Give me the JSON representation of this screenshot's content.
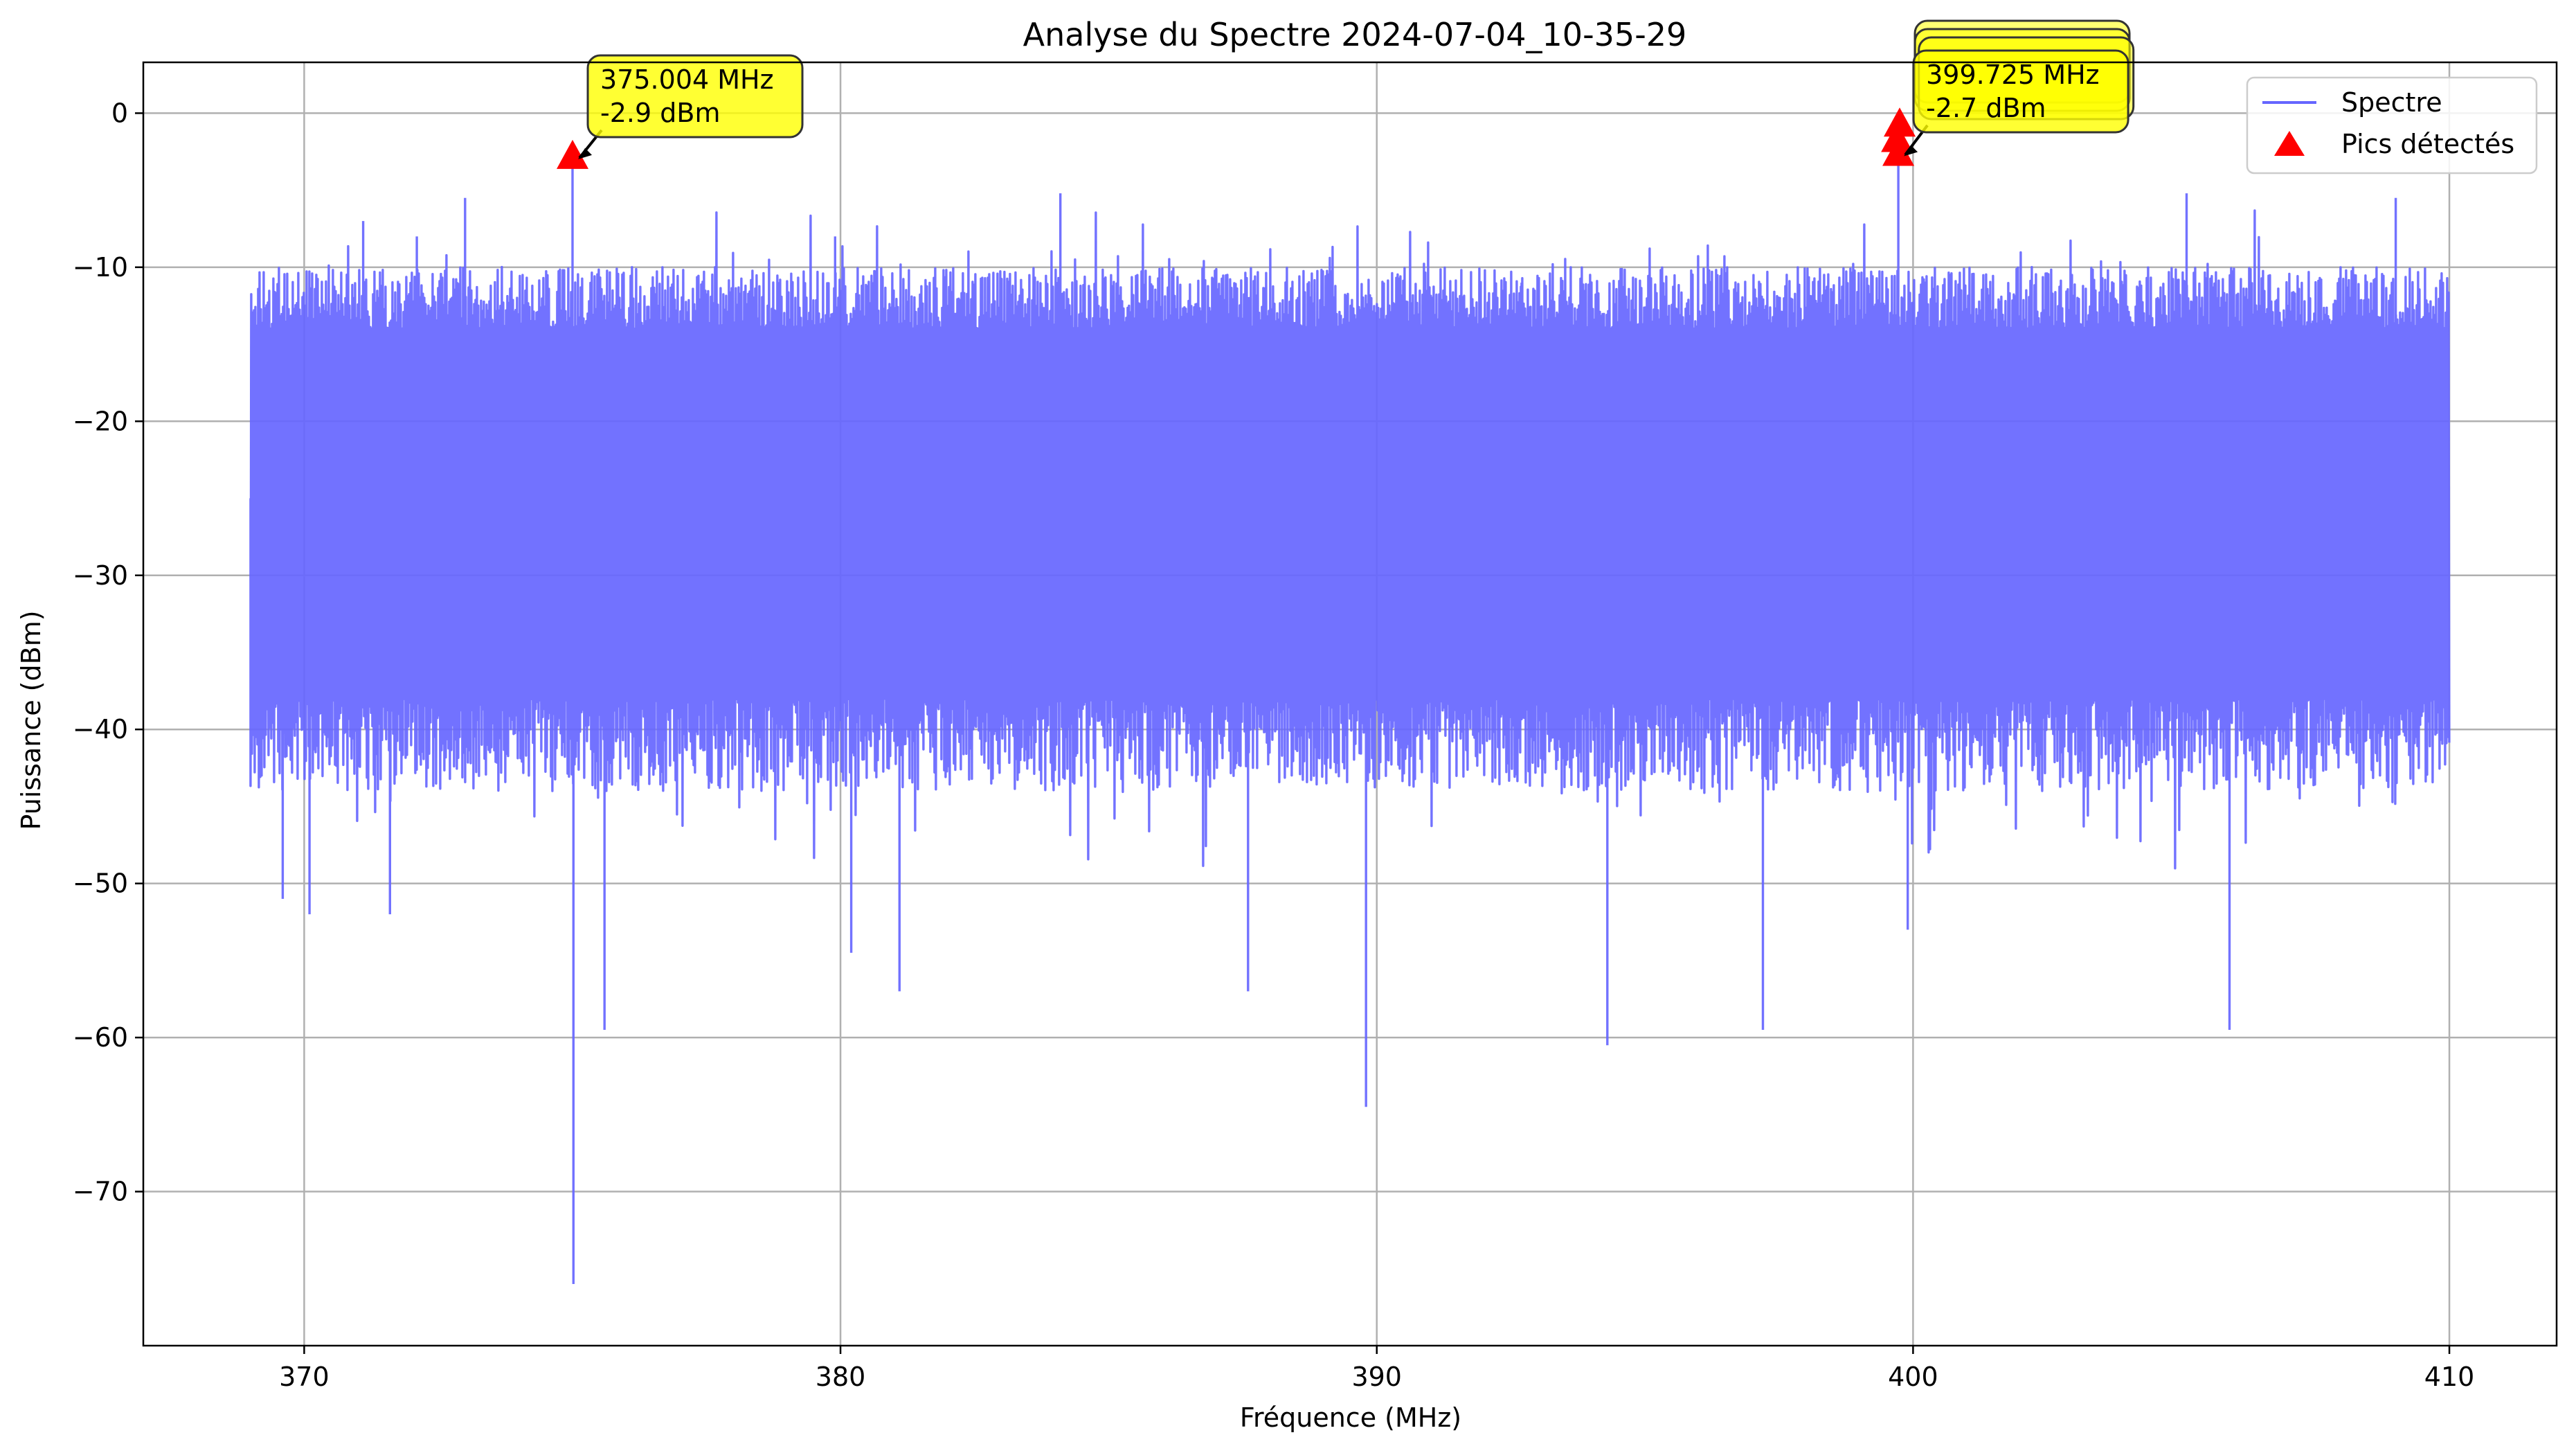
{
  "chart_data": {
    "type": "line",
    "title": "Analyse du Spectre 2024-07-04_10-35-29",
    "xlabel": "Fréquence (MHz)",
    "ylabel": "Puissance (dBm)",
    "xlim": [
      367,
      412
    ],
    "ylim": [
      -80,
      3.3
    ],
    "xticks": [
      370,
      380,
      390,
      400,
      410
    ],
    "yticks": [
      0,
      -10,
      -20,
      -30,
      -40,
      -50,
      -60,
      -70
    ],
    "grid": true,
    "legend_position": "top-right",
    "series": [
      {
        "name": "Spectre",
        "kind": "line",
        "color": "#6666ff",
        "x_range": [
          369,
          410
        ],
        "noise_floor_range": [
          -35,
          -15
        ],
        "features": [
          {
            "x": 369.6,
            "y": -51
          },
          {
            "x": 370.1,
            "y": -52
          },
          {
            "x": 371.1,
            "y": -7
          },
          {
            "x": 371.6,
            "y": -52
          },
          {
            "x": 372.1,
            "y": -8
          },
          {
            "x": 373.0,
            "y": -5.5
          },
          {
            "x": 375.004,
            "y": -2.9
          },
          {
            "x": 375.02,
            "y": -76
          },
          {
            "x": 375.6,
            "y": -59.5
          },
          {
            "x": 379.9,
            "y": -8
          },
          {
            "x": 380.2,
            "y": -54.5
          },
          {
            "x": 381.1,
            "y": -57
          },
          {
            "x": 384.1,
            "y": -5.2
          },
          {
            "x": 387.6,
            "y": -57
          },
          {
            "x": 389.8,
            "y": -64.5
          },
          {
            "x": 392.7,
            "y": -11
          },
          {
            "x": 394.3,
            "y": -60.5
          },
          {
            "x": 397.2,
            "y": -59.5
          },
          {
            "x": 399.725,
            "y": -2.7
          },
          {
            "x": 399.9,
            "y": -53
          },
          {
            "x": 405.1,
            "y": -5.2
          },
          {
            "x": 405.9,
            "y": -59.5
          },
          {
            "x": 409.0,
            "y": -5.5
          }
        ]
      },
      {
        "name": "Pics détectés",
        "kind": "markers",
        "color": "#ff0000",
        "points": [
          {
            "x": 375.004,
            "y": -2.9
          },
          {
            "x": 399.725,
            "y": -2.7
          },
          {
            "x": 399.75,
            "y": -0.8
          },
          {
            "x": 399.7,
            "y": -1.8
          }
        ]
      }
    ],
    "annotations": [
      {
        "freq_text": "375.004 MHz",
        "power_text": "-2.9 dBm",
        "x": 375.004,
        "y": -2.9
      },
      {
        "freq_text": "399.725 MHz",
        "power_text": "-2.7 dBm",
        "x": 399.725,
        "y": -2.7
      }
    ],
    "stacked_annotations": [
      {
        "x": 399.75,
        "y": -0.8
      },
      {
        "x": 399.7,
        "y": -1.8
      },
      {
        "x": 399.72,
        "y": -2.2
      }
    ]
  }
}
